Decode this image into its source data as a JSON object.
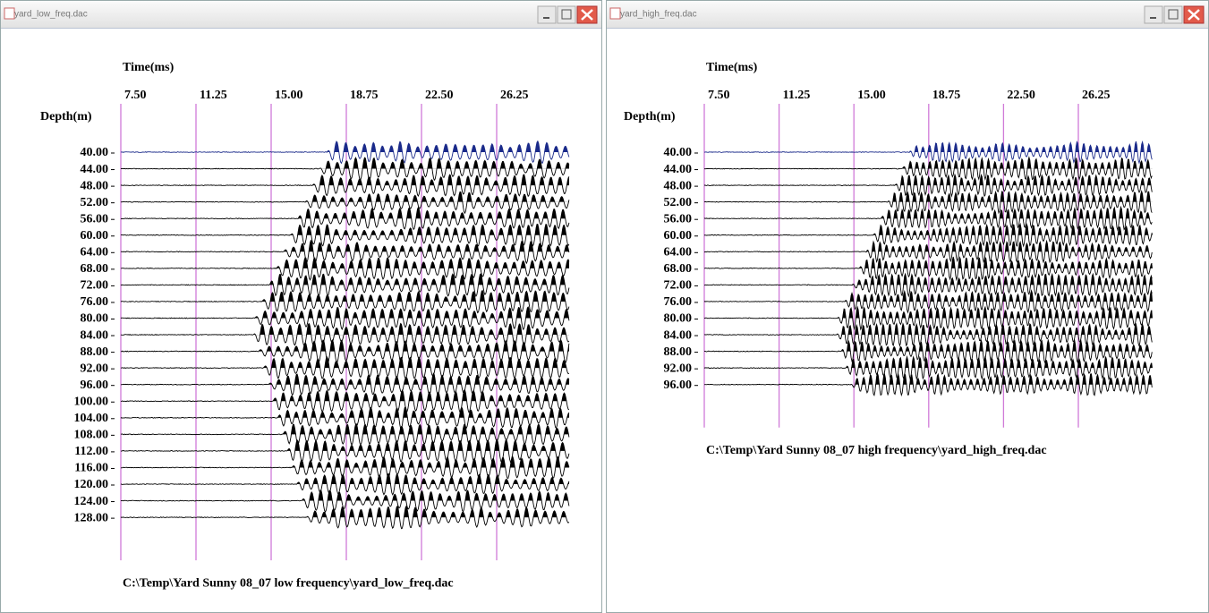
{
  "windows": [
    {
      "title": "yard_low_freq.dac",
      "time_label": "Time(ms)",
      "time_ticks": [
        "7.50",
        "11.25",
        "15.00",
        "18.75",
        "22.50",
        "26.25"
      ],
      "depth_label": "Depth(m)",
      "depth_ticks": [
        "40.00",
        "44.00",
        "48.00",
        "52.00",
        "56.00",
        "60.00",
        "64.00",
        "68.00",
        "72.00",
        "76.00",
        "80.00",
        "84.00",
        "88.00",
        "92.00",
        "96.00",
        "100.00",
        "104.00",
        "108.00",
        "112.00",
        "116.00",
        "120.00",
        "124.00",
        "128.00"
      ],
      "caption": "C:\\Temp\\Yard Sunny 08_07 low frequency\\yard_low_freq.dac"
    },
    {
      "title": "yard_high_freq.dac",
      "time_label": "Time(ms)",
      "time_ticks": [
        "7.50",
        "11.25",
        "15.00",
        "18.75",
        "22.50",
        "26.25"
      ],
      "depth_label": "Depth(m)",
      "depth_ticks": [
        "40.00",
        "44.00",
        "48.00",
        "52.00",
        "56.00",
        "60.00",
        "64.00",
        "68.00",
        "72.00",
        "76.00",
        "80.00",
        "84.00",
        "88.00",
        "92.00",
        "96.00"
      ],
      "caption": "C:\\Temp\\Yard Sunny 08_07 high frequency\\yard_high_freq.dac"
    }
  ]
}
